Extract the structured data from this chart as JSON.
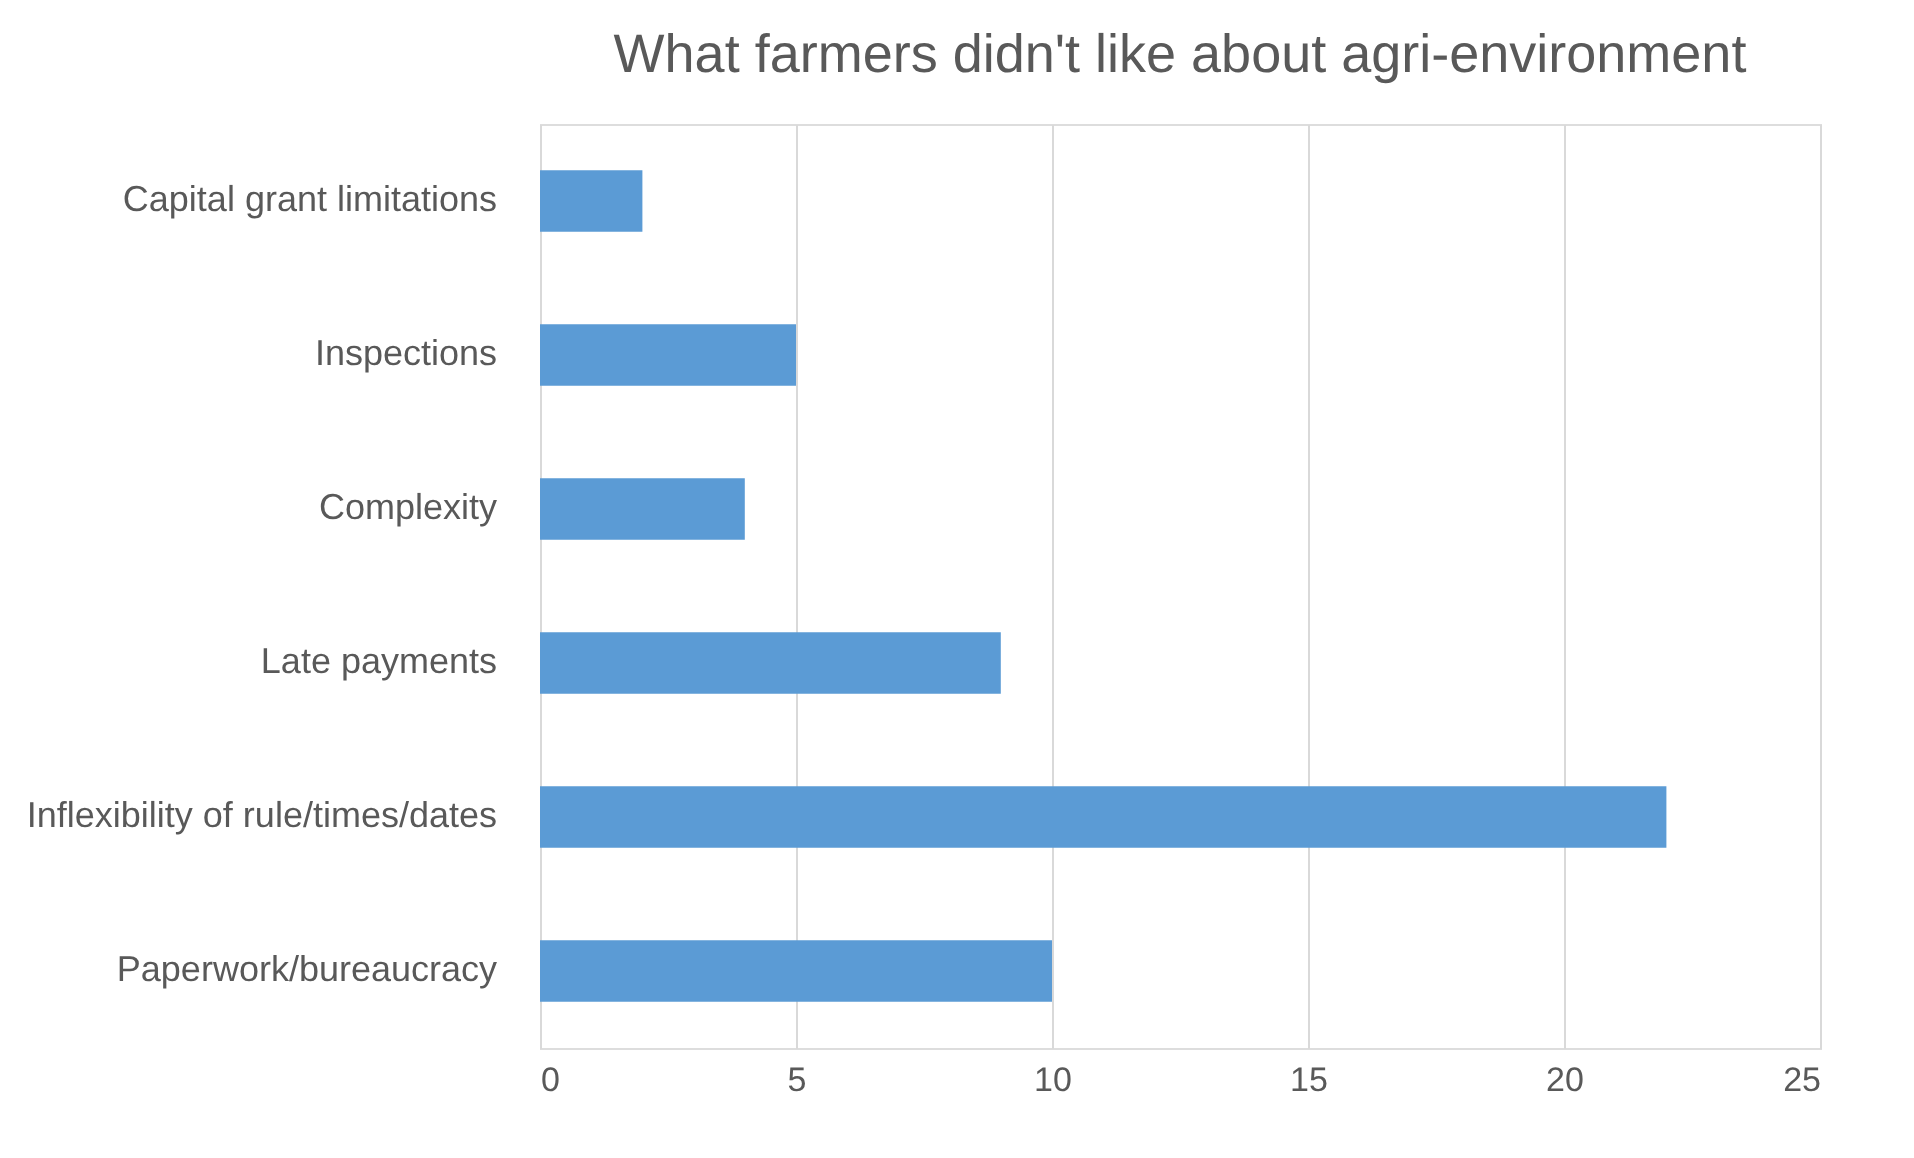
{
  "chart_data": {
    "type": "bar",
    "orientation": "horizontal",
    "title": "What farmers didn't like about agri-environment",
    "categories": [
      "Capital grant limitations",
      "Inspections",
      "Complexity",
      "Late payments",
      "Inflexibility of rule/times/dates",
      "Paperwork/bureaucracy"
    ],
    "values": [
      2,
      5,
      4,
      9,
      22,
      10
    ],
    "color": "#5b9bd5",
    "xlim": [
      0,
      25
    ],
    "xticks": [
      0,
      5,
      10,
      15,
      20,
      25
    ],
    "grid": "x"
  }
}
